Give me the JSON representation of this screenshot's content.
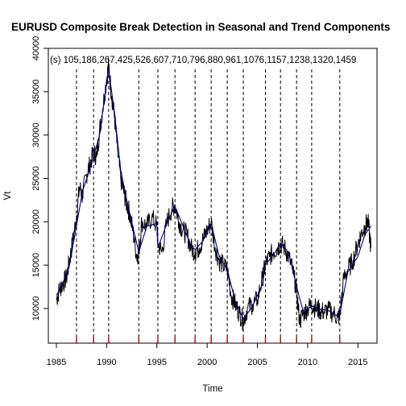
{
  "chart_data": {
    "type": "line",
    "title": "EURUSD Composite Break Detection in Seasonal and Trend Components",
    "xlabel": "Time",
    "ylabel": "Vt",
    "xlim": [
      1984.2,
      2016.9
    ],
    "ylim": [
      6000,
      40000
    ],
    "x_ticks": [
      1985,
      1990,
      1995,
      2000,
      2005,
      2010,
      2015
    ],
    "y_ticks": [
      10000,
      15000,
      20000,
      25000,
      30000,
      35000,
      40000
    ],
    "annotation": "(s) 105,186,267,425,526,607,710,796,880,961,1076,1157,1238,1320,1459",
    "breakpoints_x": [
      1987.0,
      1988.7,
      1990.2,
      1993.2,
      1995.1,
      1996.8,
      1998.8,
      2000.4,
      2002.0,
      2003.6,
      2005.8,
      2007.3,
      2008.9,
      2010.4,
      2013.2
    ],
    "series": [
      {
        "color": "#000000",
        "x": [
          1985.0,
          1985.3,
          1985.6,
          1986.0,
          1986.3,
          1986.6,
          1987.0,
          1987.3,
          1987.6,
          1988.0,
          1988.3,
          1988.7,
          1989.0,
          1989.3,
          1989.6,
          1990.0,
          1990.2,
          1990.5,
          1990.8,
          1991.1,
          1991.4,
          1991.7,
          1992.0,
          1992.3,
          1992.6,
          1993.0,
          1993.2,
          1993.5,
          1994.0,
          1994.5,
          1995.0,
          1995.1,
          1995.5,
          1996.0,
          1996.5,
          1996.8,
          1997.2,
          1997.6,
          1998.0,
          1998.4,
          1998.8,
          1999.2,
          1999.6,
          2000.0,
          2000.4,
          2000.8,
          2001.2,
          2001.6,
          2002.0,
          2002.4,
          2002.8,
          2003.2,
          2003.6,
          2004.0,
          2004.5,
          2005.0,
          2005.5,
          2005.8,
          2006.2,
          2006.6,
          2007.0,
          2007.3,
          2007.7,
          2008.1,
          2008.5,
          2008.9,
          2009.2,
          2009.6,
          2010.0,
          2010.4,
          2010.8,
          2011.2,
          2011.6,
          2012.0,
          2012.5,
          2013.0,
          2013.2,
          2013.6,
          2014.0,
          2014.5,
          2015.0,
          2015.3,
          2015.7,
          2016.0,
          2016.3
        ],
        "y": [
          11000,
          12200,
          12800,
          13500,
          15500,
          17500,
          20500,
          24000,
          23000,
          25500,
          26500,
          28000,
          27500,
          30500,
          33000,
          36500,
          38000,
          34500,
          32000,
          28000,
          25000,
          23500,
          22000,
          21000,
          19000,
          16000,
          16500,
          20000,
          19500,
          20500,
          19500,
          17500,
          16500,
          20000,
          21500,
          22000,
          20000,
          19000,
          18500,
          17000,
          16500,
          17000,
          18000,
          19000,
          20000,
          17000,
          15500,
          15000,
          14500,
          11500,
          10500,
          9500,
          8500,
          10000,
          10500,
          11000,
          13500,
          15000,
          16000,
          16500,
          17000,
          17500,
          17000,
          16000,
          14500,
          12000,
          8500,
          9500,
          10000,
          10500,
          10000,
          9800,
          9600,
          9800,
          9500,
          9000,
          9200,
          13500,
          14500,
          15500,
          17500,
          18500,
          19500,
          20000,
          17000
        ]
      },
      {
        "color": "#00008b",
        "x": [
          1985.0,
          1985.6,
          1986.3,
          1987.0,
          1987.6,
          1988.3,
          1988.7,
          1989.3,
          1990.0,
          1990.2,
          1990.8,
          1991.4,
          1992.0,
          1992.6,
          1993.2,
          1994.0,
          1995.0,
          1995.1,
          1996.0,
          1996.8,
          1997.6,
          1998.4,
          1998.8,
          1999.6,
          2000.4,
          2001.2,
          2002.0,
          2002.8,
          2003.6,
          2004.5,
          2005.5,
          2005.8,
          2006.6,
          2007.3,
          2008.1,
          2008.9,
          2009.6,
          2010.4,
          2011.2,
          2012.0,
          2013.0,
          2013.2,
          2014.0,
          2015.0,
          2015.7,
          2016.3
        ],
        "y": [
          11500,
          12800,
          15000,
          19500,
          23500,
          26000,
          27500,
          30000,
          36000,
          37500,
          32500,
          26000,
          22500,
          19500,
          16500,
          19500,
          19800,
          17000,
          19800,
          21800,
          19500,
          17200,
          16800,
          17800,
          19800,
          16000,
          14500,
          10800,
          8800,
          10200,
          12800,
          15000,
          16200,
          17500,
          16500,
          12500,
          9500,
          10300,
          9900,
          9800,
          9100,
          9300,
          14200,
          16000,
          18500,
          19500
        ]
      }
    ]
  }
}
